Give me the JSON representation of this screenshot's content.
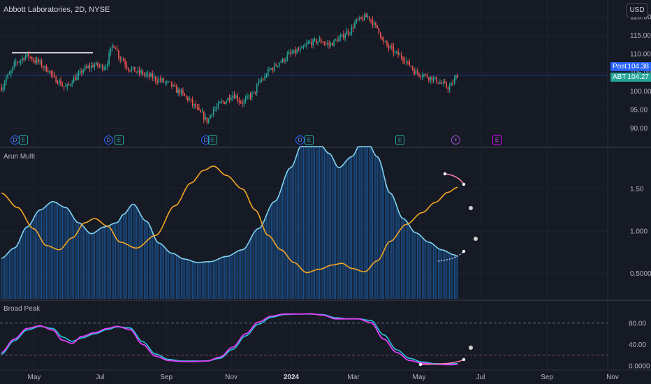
{
  "header": {
    "title": "Abbott Laboratories, 2D, NYSE",
    "currency_button": "USD"
  },
  "price_tags": {
    "post": {
      "label": "Post",
      "value": "104.38"
    },
    "abt": {
      "label": "ABT",
      "value": "104.27"
    }
  },
  "axes": {
    "price_ticks": [
      "120.00",
      "115.00",
      "110.00",
      "105.00",
      "100.00",
      "95.00",
      "90.00"
    ],
    "arun_ticks": [
      "1.50",
      "1.000",
      "0.5000"
    ],
    "broad_ticks": [
      "80.00",
      "40.00",
      "0.0000"
    ],
    "time_labels": [
      "May",
      "Jul",
      "Sep",
      "Nov",
      "2024",
      "Mar",
      "May",
      "Jul",
      "Sep",
      "Nov"
    ]
  },
  "panes": {
    "arun_title": "Arun Multi",
    "broad_title": "Broad Peak"
  },
  "events": [
    {
      "kind": "D",
      "icon": "dividend-icon"
    },
    {
      "kind": "E",
      "icon": "earnings-icon"
    },
    {
      "kind": "D",
      "icon": "dividend-icon"
    },
    {
      "kind": "E",
      "icon": "earnings-icon"
    },
    {
      "kind": "D",
      "icon": "dividend-icon"
    },
    {
      "kind": "E",
      "icon": "earnings-icon"
    },
    {
      "kind": "D",
      "icon": "dividend-icon"
    },
    {
      "kind": "E",
      "icon": "earnings-icon"
    },
    {
      "kind": "E",
      "icon": "earnings-icon"
    },
    {
      "kind": "⚡",
      "icon": "split-bolt-icon"
    },
    {
      "kind": "E",
      "icon": "future-earnings-icon"
    }
  ],
  "colors": {
    "up": "#26a69a",
    "down": "#ef5350",
    "cyan": "#7fd3f0",
    "orange": "#f5a623",
    "magenta": "#e040fb",
    "teal": "#26c6da",
    "hist": "#1a4f8a",
    "pink": "#ff80ab"
  },
  "chart_data": [
    {
      "type": "candlestick",
      "title": "Abbott Laboratories, 2D, NYSE",
      "y_range": [
        87.5,
        121.5
      ],
      "series_anchors": [
        [
          0,
          101
        ],
        [
          4,
          104
        ],
        [
          10,
          108
        ],
        [
          16,
          109.5
        ],
        [
          22,
          108
        ],
        [
          28,
          106
        ],
        [
          34,
          103
        ],
        [
          40,
          101
        ],
        [
          46,
          103.5
        ],
        [
          52,
          106
        ],
        [
          58,
          107
        ],
        [
          64,
          106.5
        ],
        [
          70,
          112.5
        ],
        [
          74,
          109
        ],
        [
          80,
          106
        ],
        [
          86,
          105
        ],
        [
          92,
          104
        ],
        [
          98,
          103
        ],
        [
          104,
          102
        ],
        [
          110,
          100
        ],
        [
          116,
          98
        ],
        [
          120,
          96
        ],
        [
          124,
          94
        ],
        [
          128,
          92
        ],
        [
          132,
          95
        ],
        [
          138,
          97
        ],
        [
          144,
          99
        ],
        [
          150,
          97
        ],
        [
          156,
          99
        ],
        [
          162,
          103
        ],
        [
          168,
          106
        ],
        [
          174,
          108
        ],
        [
          180,
          110
        ],
        [
          186,
          111
        ],
        [
          192,
          113
        ],
        [
          198,
          113.5
        ],
        [
          204,
          112.5
        ],
        [
          210,
          114
        ],
        [
          216,
          116
        ],
        [
          222,
          119
        ],
        [
          228,
          120
        ],
        [
          234,
          117
        ],
        [
          238,
          113
        ],
        [
          242,
          111.5
        ],
        [
          246,
          110
        ],
        [
          250,
          109
        ],
        [
          254,
          107
        ],
        [
          258,
          105
        ],
        [
          262,
          104.5
        ],
        [
          266,
          103.8
        ],
        [
          270,
          103
        ],
        [
          274,
          102
        ],
        [
          278,
          101
        ],
        [
          280,
          101.5
        ],
        [
          282,
          103
        ],
        [
          284,
          104.3
        ]
      ],
      "candles_count": 285,
      "reference_line": 110.3
    },
    {
      "type": "line",
      "title": "Arun Multi",
      "y_range": [
        0.2,
        2.0
      ],
      "series": [
        {
          "name": "cyan",
          "anchors": [
            [
              0,
              0.68
            ],
            [
              8,
              0.8
            ],
            [
              16,
              1.05
            ],
            [
              24,
              1.25
            ],
            [
              32,
              1.35
            ],
            [
              40,
              1.28
            ],
            [
              48,
              1.1
            ],
            [
              56,
              0.97
            ],
            [
              64,
              1.05
            ],
            [
              72,
              1.1
            ],
            [
              76,
              1.2
            ],
            [
              82,
              1.32
            ],
            [
              90,
              1.12
            ],
            [
              98,
              0.86
            ],
            [
              106,
              0.74
            ],
            [
              114,
              0.67
            ],
            [
              122,
              0.63
            ],
            [
              130,
              0.64
            ],
            [
              140,
              0.7
            ],
            [
              150,
              0.78
            ],
            [
              160,
              1.03
            ],
            [
              170,
              1.35
            ],
            [
              180,
              1.75
            ],
            [
              188,
              2.07
            ],
            [
              196,
              2.1
            ],
            [
              204,
              1.92
            ],
            [
              210,
              1.75
            ],
            [
              218,
              1.88
            ],
            [
              226,
              2.14
            ],
            [
              234,
              1.88
            ],
            [
              242,
              1.45
            ],
            [
              250,
              1.15
            ],
            [
              258,
              0.98
            ],
            [
              266,
              0.87
            ],
            [
              274,
              0.78
            ],
            [
              282,
              0.72
            ],
            [
              284,
              0.7
            ],
            [
              290,
              0.73
            ]
          ]
        },
        {
          "name": "orange",
          "anchors": [
            [
              0,
              1.45
            ],
            [
              10,
              1.28
            ],
            [
              20,
              1.03
            ],
            [
              28,
              0.83
            ],
            [
              36,
              0.78
            ],
            [
              44,
              0.92
            ],
            [
              52,
              1.1
            ],
            [
              58,
              1.15
            ],
            [
              66,
              1.06
            ],
            [
              74,
              0.87
            ],
            [
              84,
              0.8
            ],
            [
              96,
              0.95
            ],
            [
              108,
              1.3
            ],
            [
              118,
              1.57
            ],
            [
              126,
              1.72
            ],
            [
              132,
              1.77
            ],
            [
              140,
              1.66
            ],
            [
              150,
              1.5
            ],
            [
              158,
              1.25
            ],
            [
              166,
              0.95
            ],
            [
              174,
              0.78
            ],
            [
              182,
              0.63
            ],
            [
              190,
              0.51
            ],
            [
              198,
              0.55
            ],
            [
              206,
              0.6
            ],
            [
              212,
              0.62
            ],
            [
              218,
              0.56
            ],
            [
              226,
              0.52
            ],
            [
              234,
              0.65
            ],
            [
              242,
              0.88
            ],
            [
              252,
              1.08
            ],
            [
              262,
              1.22
            ],
            [
              270,
              1.34
            ],
            [
              278,
              1.46
            ],
            [
              284,
              1.52
            ],
            [
              290,
              1.47
            ]
          ]
        }
      ],
      "hist_values_approx": "cyan series, bars from 0.2 baseline"
    },
    {
      "type": "line",
      "title": "Broad Peak",
      "y_range": [
        -8,
        102
      ],
      "series": [
        {
          "name": "magenta",
          "anchors": [
            [
              0,
              25
            ],
            [
              8,
              50
            ],
            [
              16,
              70
            ],
            [
              24,
              75
            ],
            [
              32,
              67
            ],
            [
              38,
              48
            ],
            [
              44,
              42
            ],
            [
              50,
              55
            ],
            [
              58,
              62
            ],
            [
              66,
              70
            ],
            [
              72,
              74
            ],
            [
              80,
              68
            ],
            [
              88,
              40
            ],
            [
              96,
              18
            ],
            [
              104,
              10
            ],
            [
              112,
              8
            ],
            [
              120,
              8
            ],
            [
              128,
              9
            ],
            [
              136,
              16
            ],
            [
              144,
              35
            ],
            [
              152,
              60
            ],
            [
              160,
              82
            ],
            [
              168,
              93
            ],
            [
              176,
              97
            ],
            [
              184,
              97
            ],
            [
              192,
              97.5
            ],
            [
              200,
              95
            ],
            [
              208,
              88
            ],
            [
              216,
              88
            ],
            [
              222,
              88
            ],
            [
              230,
              81
            ],
            [
              238,
              50
            ],
            [
              246,
              25
            ],
            [
              254,
              10
            ],
            [
              262,
              5
            ],
            [
              270,
              3
            ],
            [
              278,
              2
            ],
            [
              284,
              2.5
            ]
          ]
        },
        {
          "name": "teal",
          "anchors": [
            [
              0,
              22
            ],
            [
              8,
              47
            ],
            [
              16,
              67
            ],
            [
              24,
              74
            ],
            [
              32,
              70
            ],
            [
              38,
              54
            ],
            [
              44,
              46
            ],
            [
              50,
              52
            ],
            [
              58,
              60
            ],
            [
              66,
              68
            ],
            [
              72,
              73
            ],
            [
              80,
              71
            ],
            [
              88,
              45
            ],
            [
              96,
              22
            ],
            [
              104,
              12
            ],
            [
              112,
              9
            ],
            [
              120,
              9
            ],
            [
              128,
              9
            ],
            [
              136,
              14
            ],
            [
              144,
              31
            ],
            [
              152,
              56
            ],
            [
              160,
              78
            ],
            [
              168,
              91
            ],
            [
              176,
              96
            ],
            [
              184,
              97
            ],
            [
              192,
              97
            ],
            [
              200,
              96
            ],
            [
              208,
              90
            ],
            [
              216,
              88
            ],
            [
              222,
              88
            ],
            [
              230,
              85
            ],
            [
              238,
              58
            ],
            [
              246,
              30
            ],
            [
              254,
              14
            ],
            [
              262,
              7
            ],
            [
              270,
              4
            ],
            [
              278,
              3.5
            ],
            [
              284,
              4
            ]
          ]
        }
      ],
      "reference_levels": [
        80,
        20
      ]
    }
  ]
}
